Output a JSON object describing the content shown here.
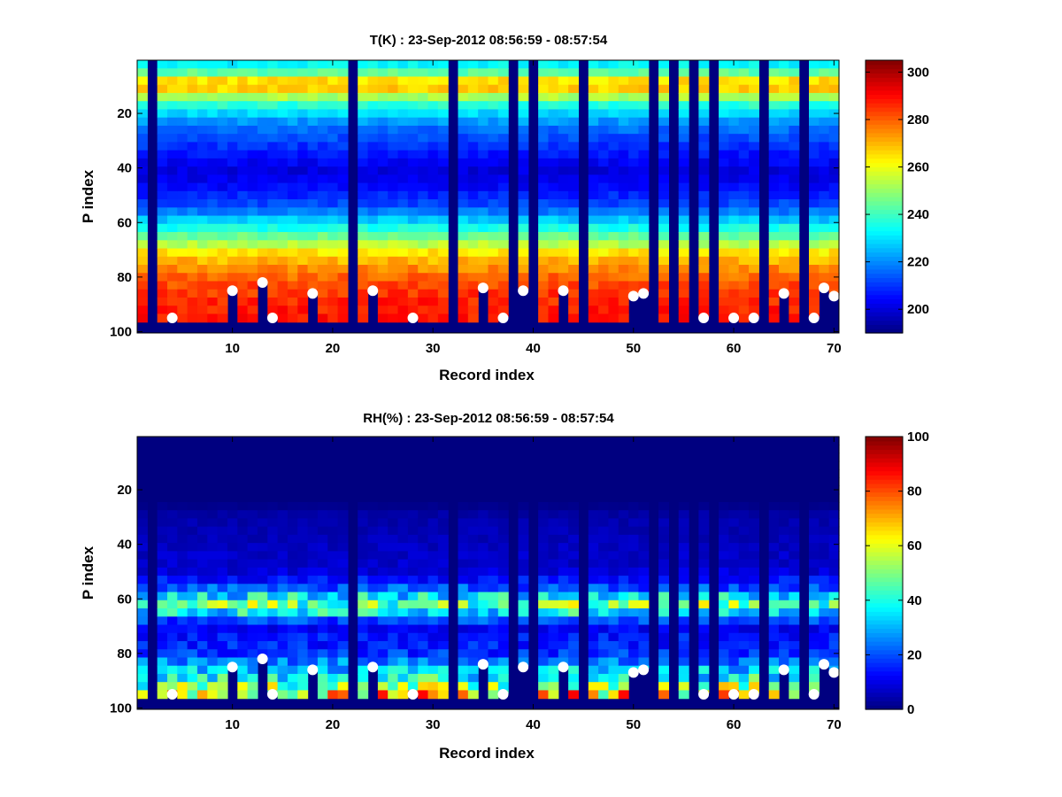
{
  "chart_data": [
    {
      "type": "heatmap",
      "title": "T(K) : 23-Sep-2012 08:56:59 - 08:57:54",
      "xlabel": "Record index",
      "ylabel": "P index",
      "xlim": [
        0.5,
        70.5
      ],
      "ylim": [
        100,
        1
      ],
      "y_reversed": true,
      "xticks": [
        10,
        20,
        30,
        40,
        50,
        60,
        70
      ],
      "yticks": [
        20,
        40,
        60,
        80,
        100
      ],
      "grid": false,
      "colormap": "jet",
      "colorbar": {
        "min": 190,
        "max": 305,
        "ticks": [
          200,
          220,
          240,
          260,
          280,
          300
        ],
        "location": "right"
      },
      "profile": {
        "p_index": [
          1,
          5,
          8,
          10,
          13,
          18,
          25,
          35,
          42,
          47,
          55,
          62,
          68,
          72,
          78,
          84,
          90,
          96
        ],
        "value": [
          228,
          240,
          262,
          274,
          260,
          235,
          218,
          207,
          200,
          204,
          214,
          234,
          252,
          266,
          276,
          283,
          287,
          288
        ]
      },
      "cell_variation_pct": 1.5,
      "missing_records": [
        2,
        22,
        32,
        38,
        40,
        45,
        52,
        54,
        56,
        58,
        63,
        67
      ],
      "base_fill_from_p": 97,
      "surface_markers": [
        {
          "record": 4,
          "p_index": 95
        },
        {
          "record": 10,
          "p_index": 85
        },
        {
          "record": 13,
          "p_index": 82
        },
        {
          "record": 14,
          "p_index": 95
        },
        {
          "record": 18,
          "p_index": 86
        },
        {
          "record": 24,
          "p_index": 85
        },
        {
          "record": 28,
          "p_index": 95
        },
        {
          "record": 35,
          "p_index": 84
        },
        {
          "record": 37,
          "p_index": 95
        },
        {
          "record": 39,
          "p_index": 85
        },
        {
          "record": 43,
          "p_index": 85
        },
        {
          "record": 50,
          "p_index": 87
        },
        {
          "record": 51,
          "p_index": 86
        },
        {
          "record": 57,
          "p_index": 95
        },
        {
          "record": 60,
          "p_index": 95
        },
        {
          "record": 62,
          "p_index": 95
        },
        {
          "record": 65,
          "p_index": 86
        },
        {
          "record": 68,
          "p_index": 95
        },
        {
          "record": 69,
          "p_index": 84
        },
        {
          "record": 70,
          "p_index": 87
        }
      ]
    },
    {
      "type": "heatmap",
      "title": "RH(%) : 23-Sep-2012 08:56:59 - 08:57:54",
      "xlabel": "Record index",
      "ylabel": "P index",
      "xlim": [
        0.5,
        70.5
      ],
      "ylim": [
        100,
        1
      ],
      "y_reversed": true,
      "xticks": [
        10,
        20,
        30,
        40,
        50,
        60,
        70
      ],
      "yticks": [
        20,
        40,
        60,
        80,
        100
      ],
      "grid": false,
      "colormap": "jet",
      "colorbar": {
        "min": 0,
        "max": 100,
        "ticks": [
          0,
          20,
          40,
          60,
          80,
          100
        ],
        "location": "right"
      },
      "profile": {
        "p_index": [
          1,
          25,
          30,
          40,
          50,
          56,
          60,
          63,
          66,
          70,
          74,
          80,
          85,
          90,
          94,
          96
        ],
        "value": [
          0,
          0,
          4,
          6,
          8,
          18,
          38,
          50,
          34,
          10,
          14,
          16,
          28,
          40,
          58,
          68
        ]
      },
      "cell_variation_pct": 35,
      "missing_records": [
        2,
        22,
        32,
        38,
        40,
        45,
        52,
        54,
        56,
        58,
        63,
        67
      ],
      "base_fill_from_p": 97,
      "surface_markers": [
        {
          "record": 4,
          "p_index": 95
        },
        {
          "record": 10,
          "p_index": 85
        },
        {
          "record": 13,
          "p_index": 82
        },
        {
          "record": 14,
          "p_index": 95
        },
        {
          "record": 18,
          "p_index": 86
        },
        {
          "record": 24,
          "p_index": 85
        },
        {
          "record": 28,
          "p_index": 95
        },
        {
          "record": 35,
          "p_index": 84
        },
        {
          "record": 37,
          "p_index": 95
        },
        {
          "record": 39,
          "p_index": 85
        },
        {
          "record": 43,
          "p_index": 85
        },
        {
          "record": 50,
          "p_index": 87
        },
        {
          "record": 51,
          "p_index": 86
        },
        {
          "record": 57,
          "p_index": 95
        },
        {
          "record": 60,
          "p_index": 95
        },
        {
          "record": 62,
          "p_index": 95
        },
        {
          "record": 65,
          "p_index": 86
        },
        {
          "record": 68,
          "p_index": 95
        },
        {
          "record": 69,
          "p_index": 84
        },
        {
          "record": 70,
          "p_index": 87
        }
      ]
    }
  ]
}
